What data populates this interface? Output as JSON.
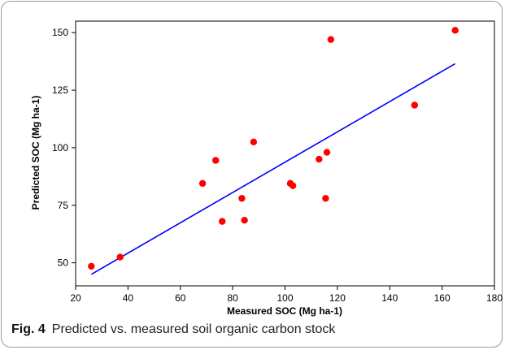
{
  "chart_data": {
    "type": "scatter",
    "xlabel": "Measured SOC (Mg ha-1)",
    "ylabel": "Predicted SOC (Mg ha-1)",
    "xlim": [
      20,
      180
    ],
    "ylim": [
      40,
      155
    ],
    "xticks": [
      20,
      40,
      60,
      80,
      100,
      120,
      140,
      160,
      180
    ],
    "yticks": [
      50,
      75,
      100,
      125,
      150
    ],
    "grid": false,
    "legend": "none",
    "series": [
      {
        "kind": "points",
        "color": "#ff0000",
        "points": [
          {
            "x": 26,
            "y": 48.5
          },
          {
            "x": 37,
            "y": 52.5
          },
          {
            "x": 68.5,
            "y": 84.5
          },
          {
            "x": 73.5,
            "y": 94.5
          },
          {
            "x": 76,
            "y": 68
          },
          {
            "x": 83.5,
            "y": 78
          },
          {
            "x": 84.5,
            "y": 68.5
          },
          {
            "x": 88,
            "y": 102.5
          },
          {
            "x": 102,
            "y": 84.5
          },
          {
            "x": 103,
            "y": 83.5
          },
          {
            "x": 113,
            "y": 95
          },
          {
            "x": 115.5,
            "y": 78
          },
          {
            "x": 116,
            "y": 98
          },
          {
            "x": 117.5,
            "y": 147
          },
          {
            "x": 149.5,
            "y": 118.5
          },
          {
            "x": 165,
            "y": 151
          }
        ]
      },
      {
        "kind": "fit-line",
        "color": "#0000ff",
        "points": [
          {
            "x": 26,
            "y": 45
          },
          {
            "x": 165,
            "y": 136.5
          }
        ]
      }
    ]
  },
  "caption": {
    "label": "Fig. 4",
    "text": "Predicted vs. measured soil organic carbon stock"
  }
}
